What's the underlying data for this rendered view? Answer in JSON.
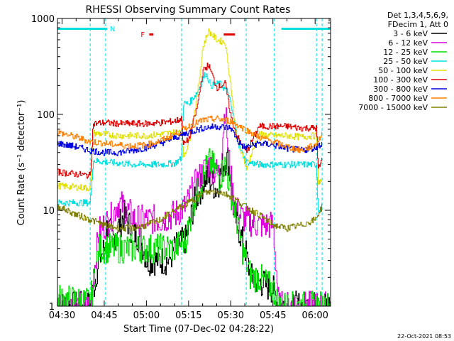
{
  "chart_data": {
    "type": "line",
    "title": "RHESSI Observing Summary Count Rates",
    "xlabel": "Start Time (07-Dec-02 04:28:22)",
    "ylabel": "Count Rate (s⁻¹ detector⁻¹)",
    "yscale": "log",
    "xlim": [
      "04:28:22",
      "06:05:30"
    ],
    "ylim": [
      1,
      1000
    ],
    "x_ticks": [
      "04:30",
      "04:45",
      "05:00",
      "05:15",
      "05:30",
      "05:45",
      "06:00"
    ],
    "y_ticks": [
      "1",
      "10",
      "100",
      "1000"
    ],
    "grid": false,
    "legend": {
      "position": "right",
      "header": [
        "Det 1,3,4,5,6,9,",
        "FDecim 1, Att 0"
      ]
    },
    "annotations": {
      "night": {
        "label": "N",
        "color": "#00e0e0",
        "bars": [
          [
            "04:28:22",
            "04:46:00"
          ],
          [
            "05:48:00",
            "06:05:30"
          ]
        ]
      },
      "flare": {
        "label": "F",
        "color": "#e00000",
        "bars": [
          [
            "05:01:00",
            "05:02:30"
          ],
          [
            "05:27:30",
            "05:31:30"
          ]
        ]
      },
      "boundaries": [
        "04:40:00",
        "04:45:30",
        "05:12:30",
        "05:35:30",
        "05:45:30",
        "06:00:30",
        "06:02:30"
      ]
    },
    "series": [
      {
        "name": "3 - 6 keV",
        "color": "#000000",
        "points": [
          [
            "04:28:22",
            1
          ],
          [
            "04:40",
            1
          ],
          [
            "04:43",
            3
          ],
          [
            "04:45",
            4
          ],
          [
            "04:46",
            7
          ],
          [
            "04:48",
            5
          ],
          [
            "04:52",
            9
          ],
          [
            "04:55",
            6
          ],
          [
            "04:58",
            5
          ],
          [
            "05:00",
            3
          ],
          [
            "05:05",
            3
          ],
          [
            "05:08",
            3
          ],
          [
            "05:10",
            4
          ],
          [
            "05:14",
            5
          ],
          [
            "05:17",
            12
          ],
          [
            "05:21",
            22
          ],
          [
            "05:23",
            20
          ],
          [
            "05:25",
            16
          ],
          [
            "05:27",
            30
          ],
          [
            "05:29",
            35
          ],
          [
            "05:31",
            10
          ],
          [
            "05:33",
            6
          ],
          [
            "05:35",
            4
          ],
          [
            "05:37",
            2
          ],
          [
            "05:40",
            1.8
          ],
          [
            "05:45",
            1.5
          ],
          [
            "05:47",
            1
          ],
          [
            "06:05:30",
            1
          ]
        ]
      },
      {
        "name": "6 - 12 keV",
        "color": "#e000e0",
        "points": [
          [
            "04:28:22",
            1
          ],
          [
            "04:40",
            1
          ],
          [
            "04:43",
            6
          ],
          [
            "04:45",
            7
          ],
          [
            "04:47",
            8
          ],
          [
            "04:50",
            12
          ],
          [
            "04:53",
            10
          ],
          [
            "04:56",
            8
          ],
          [
            "05:00",
            8
          ],
          [
            "05:05",
            8
          ],
          [
            "05:10",
            9
          ],
          [
            "05:14",
            11
          ],
          [
            "05:17",
            18
          ],
          [
            "05:20",
            25
          ],
          [
            "05:22",
            30
          ],
          [
            "05:24",
            26
          ],
          [
            "05:26",
            24
          ],
          [
            "05:28",
            130
          ],
          [
            "05:29",
            40
          ],
          [
            "05:31",
            12
          ],
          [
            "05:33",
            9
          ],
          [
            "05:35",
            8
          ],
          [
            "05:40",
            7
          ],
          [
            "05:45",
            7
          ],
          [
            "05:47",
            1
          ],
          [
            "06:05:30",
            1
          ]
        ]
      },
      {
        "name": "12 - 25 keV",
        "color": "#00e000",
        "points": [
          [
            "04:28:22",
            1.2
          ],
          [
            "04:40",
            1.1
          ],
          [
            "04:43",
            4
          ],
          [
            "04:45",
            4
          ],
          [
            "05:00",
            4
          ],
          [
            "05:10",
            4
          ],
          [
            "05:14",
            5
          ],
          [
            "05:17",
            13
          ],
          [
            "05:20",
            22
          ],
          [
            "05:22",
            32
          ],
          [
            "05:24",
            28
          ],
          [
            "05:26",
            22
          ],
          [
            "05:28",
            30
          ],
          [
            "05:30",
            15
          ],
          [
            "05:32",
            8
          ],
          [
            "05:34",
            4
          ],
          [
            "05:37",
            2
          ],
          [
            "05:40",
            2
          ],
          [
            "05:45",
            1.5
          ],
          [
            "05:47",
            1
          ],
          [
            "06:05:30",
            1
          ]
        ]
      },
      {
        "name": "25 - 50 keV",
        "color": "#00e0e0",
        "points": [
          [
            "04:28:22",
            12
          ],
          [
            "04:40",
            12
          ],
          [
            "04:41",
            33
          ],
          [
            "04:45",
            32
          ],
          [
            "04:50",
            31
          ],
          [
            "04:55",
            30
          ],
          [
            "05:00",
            30
          ],
          [
            "05:05",
            30
          ],
          [
            "05:10",
            31
          ],
          [
            "05:12:30",
            35
          ],
          [
            "05:13",
            130
          ],
          [
            "05:15",
            130
          ],
          [
            "05:18",
            170
          ],
          [
            "05:21",
            270
          ],
          [
            "05:23",
            200
          ],
          [
            "05:26",
            210
          ],
          [
            "05:29",
            170
          ],
          [
            "05:31",
            90
          ],
          [
            "05:33",
            45
          ],
          [
            "05:35:30",
            32
          ],
          [
            "05:40",
            30
          ],
          [
            "05:45",
            30
          ],
          [
            "05:50",
            30
          ],
          [
            "05:55",
            30
          ],
          [
            "06:00",
            30
          ],
          [
            "06:00:30",
            30
          ],
          [
            "06:01",
            10
          ],
          [
            "06:02:30",
            11
          ]
        ]
      },
      {
        "name": "50 - 100 keV",
        "color": "#e0e000",
        "points": [
          [
            "04:28:22",
            18
          ],
          [
            "04:40",
            17
          ],
          [
            "04:41",
            64
          ],
          [
            "04:45",
            62
          ],
          [
            "04:50",
            60
          ],
          [
            "04:55",
            60
          ],
          [
            "05:00",
            60
          ],
          [
            "05:05",
            62
          ],
          [
            "05:10",
            65
          ],
          [
            "05:12:30",
            70
          ],
          [
            "05:13",
            36
          ],
          [
            "05:15",
            50
          ],
          [
            "05:18",
            150
          ],
          [
            "05:20",
            500
          ],
          [
            "05:22",
            740
          ],
          [
            "05:25",
            600
          ],
          [
            "05:28",
            560
          ],
          [
            "05:30",
            200
          ],
          [
            "05:32",
            55
          ],
          [
            "05:35:30",
            28
          ],
          [
            "05:40",
            62
          ],
          [
            "05:45",
            60
          ],
          [
            "05:50",
            60
          ],
          [
            "05:55",
            58
          ],
          [
            "06:00",
            60
          ],
          [
            "06:00:30",
            60
          ],
          [
            "06:01",
            20
          ],
          [
            "06:02:30",
            20
          ]
        ]
      },
      {
        "name": "100 - 300 keV",
        "color": "#e00000",
        "points": [
          [
            "04:28:22",
            25
          ],
          [
            "04:40",
            23
          ],
          [
            "04:41",
            80
          ],
          [
            "04:45",
            82
          ],
          [
            "04:50",
            80
          ],
          [
            "04:55",
            80
          ],
          [
            "05:00",
            80
          ],
          [
            "05:05",
            82
          ],
          [
            "05:10",
            85
          ],
          [
            "05:12:30",
            90
          ],
          [
            "05:13",
            48
          ],
          [
            "05:15",
            55
          ],
          [
            "05:18",
            120
          ],
          [
            "05:20",
            280
          ],
          [
            "05:22",
            330
          ],
          [
            "05:25",
            190
          ],
          [
            "05:28",
            210
          ],
          [
            "05:30",
            95
          ],
          [
            "05:32",
            60
          ],
          [
            "05:35:30",
            40
          ],
          [
            "05:40",
            75
          ],
          [
            "05:45",
            75
          ],
          [
            "05:50",
            75
          ],
          [
            "05:55",
            72
          ],
          [
            "06:00",
            72
          ],
          [
            "06:00:30",
            72
          ],
          [
            "06:01",
            26
          ],
          [
            "06:02:30",
            35
          ]
        ]
      },
      {
        "name": "300 - 800 keV",
        "color": "#0000e0",
        "points": [
          [
            "04:28:22",
            50
          ],
          [
            "04:35",
            46
          ],
          [
            "04:40",
            42
          ],
          [
            "04:45",
            40
          ],
          [
            "04:50",
            40
          ],
          [
            "04:55",
            42
          ],
          [
            "05:00",
            45
          ],
          [
            "05:05",
            50
          ],
          [
            "05:10",
            57
          ],
          [
            "05:15",
            65
          ],
          [
            "05:20",
            72
          ],
          [
            "05:25",
            75
          ],
          [
            "05:30",
            72
          ],
          [
            "05:33",
            50
          ],
          [
            "05:35",
            45
          ],
          [
            "05:40",
            50
          ],
          [
            "05:45",
            48
          ],
          [
            "05:50",
            44
          ],
          [
            "05:55",
            42
          ],
          [
            "06:00",
            45
          ],
          [
            "06:02:30",
            50
          ]
        ]
      },
      {
        "name": "800 - 7000 keV",
        "color": "#ff8000",
        "points": [
          [
            "04:28:22",
            65
          ],
          [
            "04:35",
            58
          ],
          [
            "04:40",
            52
          ],
          [
            "04:45",
            50
          ],
          [
            "04:50",
            48
          ],
          [
            "04:55",
            47
          ],
          [
            "05:00",
            48
          ],
          [
            "05:05",
            53
          ],
          [
            "05:10",
            62
          ],
          [
            "05:15",
            75
          ],
          [
            "05:20",
            87
          ],
          [
            "05:25",
            90
          ],
          [
            "05:30",
            85
          ],
          [
            "05:35",
            70
          ],
          [
            "05:40",
            58
          ],
          [
            "05:45",
            52
          ],
          [
            "05:50",
            46
          ],
          [
            "05:55",
            42
          ],
          [
            "06:00",
            48
          ],
          [
            "06:02:30",
            62
          ]
        ]
      },
      {
        "name": "7000 - 15000 keV",
        "color": "#808000",
        "points": [
          [
            "04:28:22",
            11
          ],
          [
            "04:35",
            9
          ],
          [
            "04:40",
            8
          ],
          [
            "04:45",
            7
          ],
          [
            "04:50",
            6.5
          ],
          [
            "04:55",
            6.5
          ],
          [
            "05:00",
            7
          ],
          [
            "05:05",
            8
          ],
          [
            "05:10",
            10
          ],
          [
            "05:15",
            12
          ],
          [
            "05:20",
            15
          ],
          [
            "05:25",
            16
          ],
          [
            "05:30",
            14
          ],
          [
            "05:35",
            11
          ],
          [
            "05:40",
            9
          ],
          [
            "05:45",
            7
          ],
          [
            "05:50",
            6.5
          ],
          [
            "05:55",
            7
          ],
          [
            "06:00",
            8
          ],
          [
            "06:02:30",
            11
          ]
        ]
      }
    ],
    "footer_date": "22-Oct-2021 08:53"
  }
}
